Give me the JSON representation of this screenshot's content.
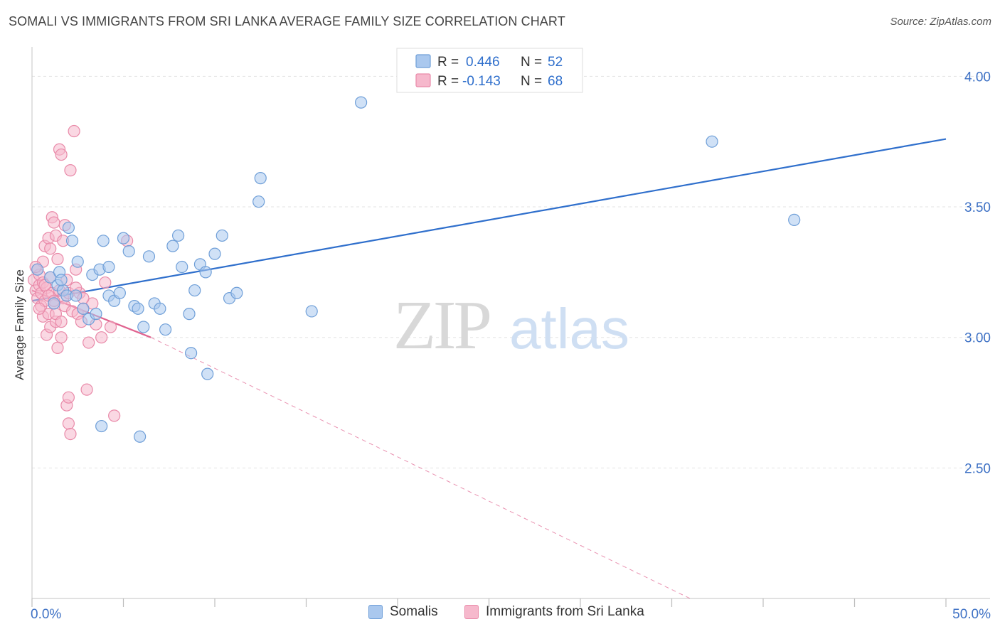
{
  "title": "SOMALI VS IMMIGRANTS FROM SRI LANKA AVERAGE FAMILY SIZE CORRELATION CHART",
  "source": "Source: ZipAtlas.com",
  "watermark": {
    "zip": "ZIP",
    "atlas": "atlas"
  },
  "colors": {
    "blue_fill": "#aac8ee",
    "blue_stroke": "#6f9fd8",
    "blue_line": "#2f6fcc",
    "pink_fill": "#f6b8cc",
    "pink_stroke": "#e98aa9",
    "pink_line": "#e0638f",
    "tick_text": "#3f72c5",
    "grid": "#e3e3e3"
  },
  "legend_top": {
    "rows": [
      {
        "r_label": "R =",
        "r_value": "0.446",
        "n_label": "N =",
        "n_value": "52",
        "series": "Somalis"
      },
      {
        "r_label": "R =",
        "r_value": "-0.143",
        "n_label": "N =",
        "n_value": "68",
        "series": "Immigrants from Sri Lanka"
      }
    ]
  },
  "chart_data": {
    "type": "scatter",
    "xlabel": "",
    "ylabel": "Average Family Size",
    "xlim": [
      0,
      50
    ],
    "ylim": [
      2.0,
      4.08
    ],
    "x_tick_labels": [
      {
        "value": 0,
        "label": "0.0%"
      },
      {
        "value": 50,
        "label": "50.0%"
      }
    ],
    "y_tick_labels": [
      {
        "value": 2.5,
        "label": "2.50"
      },
      {
        "value": 3.0,
        "label": "3.00"
      },
      {
        "value": 3.5,
        "label": "3.50"
      },
      {
        "value": 4.0,
        "label": "4.00"
      }
    ],
    "grid": true,
    "legend_placement": "top-center",
    "series": [
      {
        "name": "Somalis",
        "color": "#aac8ee",
        "trend": {
          "x0": 0,
          "y0": 3.14,
          "x1": 50,
          "y1": 3.76,
          "style": "solid"
        },
        "points": [
          [
            0.3,
            3.26
          ],
          [
            1.0,
            3.23
          ],
          [
            1.2,
            3.13
          ],
          [
            1.4,
            3.2
          ],
          [
            1.7,
            3.18
          ],
          [
            1.9,
            3.16
          ],
          [
            1.5,
            3.25
          ],
          [
            2.2,
            3.37
          ],
          [
            2.0,
            3.42
          ],
          [
            2.5,
            3.29
          ],
          [
            2.8,
            3.11
          ],
          [
            3.1,
            3.07
          ],
          [
            3.3,
            3.24
          ],
          [
            3.5,
            3.09
          ],
          [
            3.7,
            3.26
          ],
          [
            3.9,
            3.37
          ],
          [
            4.2,
            3.16
          ],
          [
            4.5,
            3.14
          ],
          [
            4.8,
            3.17
          ],
          [
            5.0,
            3.38
          ],
          [
            5.3,
            3.33
          ],
          [
            5.6,
            3.12
          ],
          [
            5.8,
            3.11
          ],
          [
            6.1,
            3.04
          ],
          [
            6.4,
            3.31
          ],
          [
            6.7,
            3.13
          ],
          [
            7.0,
            3.11
          ],
          [
            7.3,
            3.03
          ],
          [
            7.7,
            3.35
          ],
          [
            8.0,
            3.39
          ],
          [
            8.2,
            3.27
          ],
          [
            8.6,
            3.09
          ],
          [
            8.9,
            3.18
          ],
          [
            9.2,
            3.28
          ],
          [
            9.5,
            3.25
          ],
          [
            10.0,
            3.32
          ],
          [
            10.4,
            3.39
          ],
          [
            10.8,
            3.15
          ],
          [
            11.2,
            3.17
          ],
          [
            12.4,
            3.52
          ],
          [
            12.5,
            3.61
          ],
          [
            15.3,
            3.1
          ],
          [
            18.0,
            3.9
          ],
          [
            37.2,
            3.75
          ],
          [
            41.7,
            3.45
          ],
          [
            3.8,
            2.66
          ],
          [
            5.9,
            2.62
          ],
          [
            8.7,
            2.94
          ],
          [
            9.6,
            2.86
          ],
          [
            4.2,
            3.27
          ],
          [
            2.4,
            3.16
          ],
          [
            1.6,
            3.22
          ]
        ]
      },
      {
        "name": "Immigrants from Sri Lanka",
        "color": "#f6b8cc",
        "trend": {
          "x0": 0,
          "y0": 3.18,
          "x1": 6.5,
          "y1": 3.0,
          "style": "solid",
          "extended": {
            "x0": 6.5,
            "y0": 3.0,
            "x1": 36.0,
            "y1": 2.0,
            "style": "dashed"
          }
        },
        "points": [
          [
            0.1,
            3.22
          ],
          [
            0.2,
            3.18
          ],
          [
            0.3,
            3.26
          ],
          [
            0.3,
            3.15
          ],
          [
            0.4,
            3.2
          ],
          [
            0.4,
            3.24
          ],
          [
            0.5,
            3.17
          ],
          [
            0.5,
            3.12
          ],
          [
            0.6,
            3.21
          ],
          [
            0.6,
            3.08
          ],
          [
            0.7,
            3.35
          ],
          [
            0.7,
            3.14
          ],
          [
            0.8,
            3.19
          ],
          [
            0.8,
            3.01
          ],
          [
            0.9,
            3.38
          ],
          [
            0.9,
            3.09
          ],
          [
            1.0,
            3.23
          ],
          [
            1.0,
            3.04
          ],
          [
            1.1,
            3.46
          ],
          [
            1.1,
            3.17
          ],
          [
            1.2,
            3.44
          ],
          [
            1.2,
            3.13
          ],
          [
            1.3,
            3.39
          ],
          [
            1.3,
            3.06
          ],
          [
            1.4,
            3.3
          ],
          [
            1.4,
            2.96
          ],
          [
            1.5,
            3.72
          ],
          [
            1.5,
            3.18
          ],
          [
            1.6,
            3.7
          ],
          [
            1.6,
            3.0
          ],
          [
            1.7,
            3.37
          ],
          [
            1.7,
            3.15
          ],
          [
            1.8,
            3.43
          ],
          [
            1.8,
            3.12
          ],
          [
            1.9,
            3.22
          ],
          [
            1.9,
            2.74
          ],
          [
            2.0,
            3.17
          ],
          [
            2.0,
            2.67
          ],
          [
            2.1,
            3.64
          ],
          [
            2.1,
            2.63
          ],
          [
            2.2,
            3.1
          ],
          [
            2.3,
            3.79
          ],
          [
            2.4,
            3.26
          ],
          [
            2.5,
            3.09
          ],
          [
            2.6,
            3.17
          ],
          [
            2.7,
            3.06
          ],
          [
            2.8,
            3.11
          ],
          [
            3.0,
            2.8
          ],
          [
            3.1,
            2.98
          ],
          [
            3.3,
            3.13
          ],
          [
            3.5,
            3.05
          ],
          [
            3.8,
            3.0
          ],
          [
            4.0,
            3.21
          ],
          [
            4.3,
            3.04
          ],
          [
            4.5,
            2.7
          ],
          [
            0.6,
            3.29
          ],
          [
            1.0,
            3.34
          ],
          [
            2.0,
            2.77
          ],
          [
            0.2,
            3.27
          ],
          [
            0.9,
            3.16
          ],
          [
            1.3,
            3.09
          ],
          [
            5.2,
            3.37
          ],
          [
            0.4,
            3.11
          ],
          [
            1.6,
            3.06
          ],
          [
            2.8,
            3.15
          ],
          [
            0.7,
            3.2
          ],
          [
            1.2,
            3.14
          ],
          [
            2.4,
            3.19
          ]
        ]
      }
    ]
  }
}
